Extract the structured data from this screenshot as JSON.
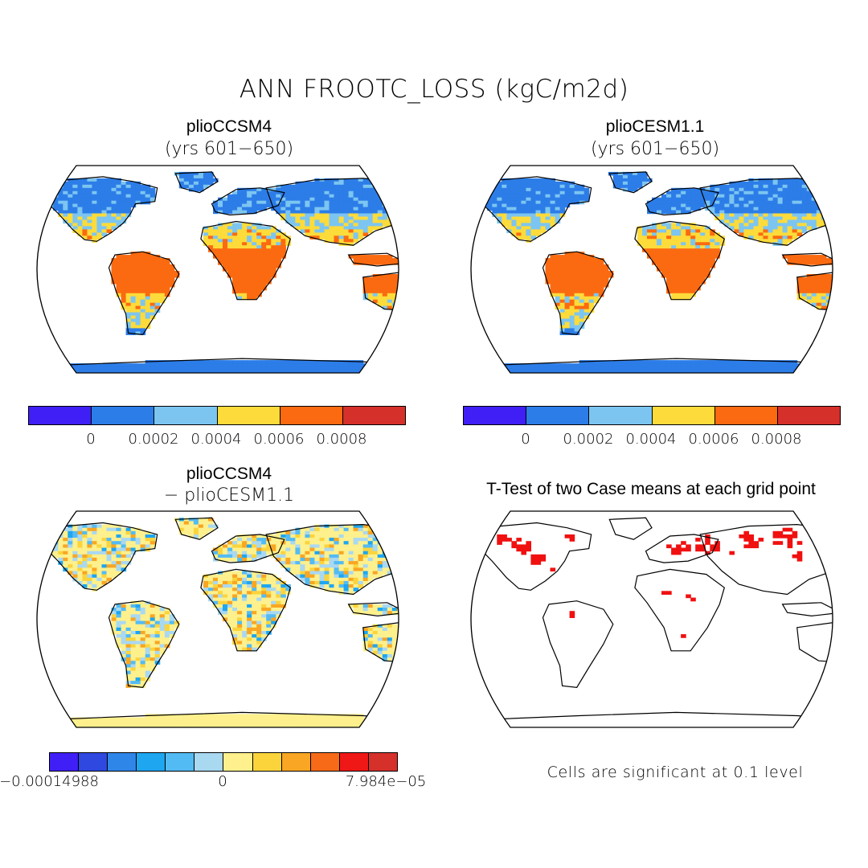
{
  "title": "ANN FROOTC_LOSS (kgC/m2d)",
  "panels": [
    {
      "title": "plioCCSM4",
      "subtitle": "(yrs 601−650)"
    },
    {
      "title": "plioCESM1.1",
      "subtitle": "(yrs 601−650)"
    },
    {
      "title": "plioCCSM4",
      "subtitle": "− plioCESM1.1"
    },
    {
      "title": "T-Test of two Case means at each grid point",
      "subtitle": ""
    }
  ],
  "colorbar_top": {
    "colors": [
      "#3f1ff5",
      "#2c7de8",
      "#7cc5f1",
      "#fddb3a",
      "#fb6a10",
      "#d5302a"
    ],
    "labels": [
      "0",
      "0.0002",
      "0.0004",
      "0.0006",
      "0.0008"
    ]
  },
  "colorbar_diff": {
    "colors": [
      "#3f1ff5",
      "#2e48e0",
      "#2f86e9",
      "#1ea6f1",
      "#53bbf4",
      "#a9d8f1",
      "#fdf08d",
      "#fbd43c",
      "#f8a623",
      "#f76a18",
      "#f01717",
      "#d5302a"
    ],
    "labels": [
      "−0.00014988",
      "0",
      "7.984e−05"
    ]
  },
  "significance_note": "Cells are significant at 0.1 level",
  "colors": {
    "ocean": "#ffffff",
    "coast": "#000000",
    "significant": "#f01010",
    "diff_neutral": "#fdf08d"
  }
}
